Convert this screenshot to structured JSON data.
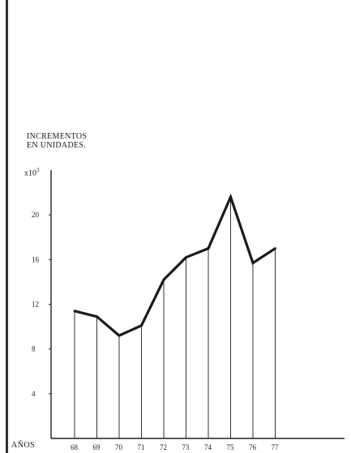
{
  "chart_data": {
    "type": "line",
    "ylabel_lines": [
      "INCREMENTOS",
      "EN UNIDADES."
    ],
    "y_scale_note": "x10",
    "y_scale_exp": "3",
    "xlabel": "AÑOS",
    "x": [
      "68",
      "69",
      "70",
      "71",
      "72",
      "73",
      "74",
      "75",
      "76",
      "77"
    ],
    "series": [
      {
        "values": [
          11.4,
          10.9,
          9.2,
          10.1,
          14.2,
          16.2,
          17.0,
          21.6,
          15.7,
          17.0
        ]
      }
    ],
    "y_ticks": [
      4,
      8,
      12,
      16,
      20
    ],
    "ylim": [
      0,
      24
    ],
    "drop_lines": true,
    "grid": false,
    "legend": "none"
  }
}
